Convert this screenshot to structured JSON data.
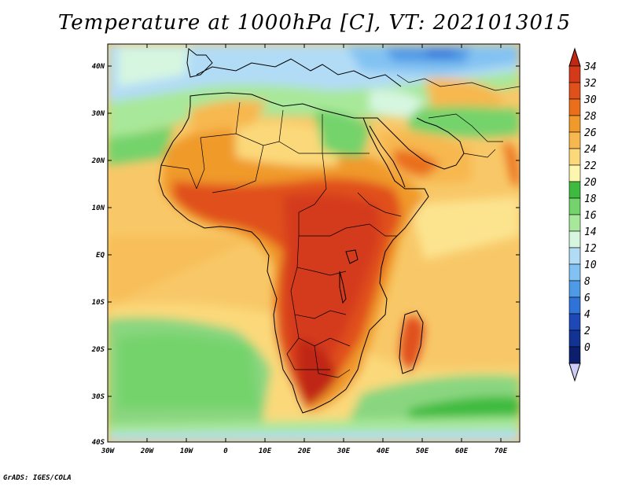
{
  "title": "Temperature at 1000hPa [C], VT: 2021013015",
  "credit": "GrADS: IGES/COLA",
  "lat_labels": [
    "40N",
    "30N",
    "20N",
    "10N",
    "EQ",
    "10S",
    "20S",
    "30S",
    "40S"
  ],
  "lon_labels": [
    "30W",
    "20W",
    "10W",
    "0",
    "10E",
    "20E",
    "30E",
    "40E",
    "50E",
    "60E",
    "70E"
  ],
  "colorbar": {
    "labels": [
      "34",
      "32",
      "30",
      "28",
      "26",
      "24",
      "22",
      "20",
      "18",
      "16",
      "14",
      "12",
      "10",
      "8",
      "6",
      "4",
      "2",
      "0"
    ],
    "colors": [
      "#d43a1a",
      "#e0501a",
      "#ea6e1c",
      "#f09a2c",
      "#f7b850",
      "#fbd97a",
      "#fdf6ae",
      "#3ebb3e",
      "#74d36c",
      "#a8e89a",
      "#d6f6e0",
      "#b2dcf6",
      "#82c2f2",
      "#4f9ae6",
      "#2f72d8",
      "#1e48b8",
      "#123294",
      "#0c1f6e"
    ],
    "over_color": "#c02812",
    "under_color": "#ccccf4"
  },
  "colors": {
    "ocean_base": "#f8c868",
    "frame": "#000000"
  }
}
